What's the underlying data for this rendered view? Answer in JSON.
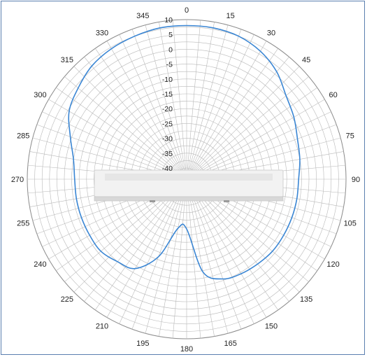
{
  "chart_data": {
    "type": "polar-line",
    "title": "",
    "radial_unit": "dB",
    "radial_range": [
      -40,
      10
    ],
    "radial_ticks": [
      10,
      5,
      0,
      -5,
      -10,
      -15,
      -20,
      -25,
      -30,
      -35,
      -40
    ],
    "radial_tick_labels": [
      "10",
      "5",
      "0",
      "-5",
      "-10",
      "-15",
      "-20",
      "-25",
      "-30",
      "-35",
      "-40"
    ],
    "angle_ticks": [
      0,
      15,
      30,
      45,
      60,
      75,
      90,
      105,
      120,
      135,
      150,
      165,
      180,
      195,
      210,
      225,
      240,
      255,
      270,
      285,
      300,
      315,
      330,
      345
    ],
    "angle_tick_labels": [
      "0",
      "15",
      "30",
      "45",
      "60",
      "75",
      "90",
      "105",
      "120",
      "135",
      "150",
      "165",
      "180",
      "195",
      "210",
      "225",
      "240",
      "255",
      "270",
      "285",
      "300",
      "315",
      "330",
      "345"
    ],
    "angle_direction": "clockwise",
    "zero_angle_at": "top",
    "grid": true,
    "series": [
      {
        "color": "#3a86d4",
        "angle": [
          0,
          10,
          20,
          30,
          40,
          50,
          60,
          70,
          80,
          90,
          100,
          110,
          120,
          130,
          140,
          150,
          160,
          170,
          180,
          190,
          200,
          210,
          220,
          230,
          240,
          250,
          260,
          270,
          280,
          290,
          300,
          310,
          320,
          330,
          340,
          350
        ],
        "value": [
          8,
          8,
          7.5,
          6,
          3.5,
          0,
          -2,
          -4,
          -5,
          -6,
          -6,
          -6,
          -6,
          -6,
          -6.5,
          -7,
          -8,
          -12,
          -27,
          -27,
          -16,
          -9,
          -7.5,
          -6,
          -6,
          -6,
          -6,
          -6,
          -5,
          -2,
          2,
          4,
          6,
          7,
          7.5,
          8
        ]
      }
    ]
  },
  "colors": {
    "grid": "#b9b9b9",
    "frame": "#5b7fb0",
    "trace": "#3a86d4"
  },
  "overlay": {
    "depicts": "antenna-body-illustration"
  }
}
